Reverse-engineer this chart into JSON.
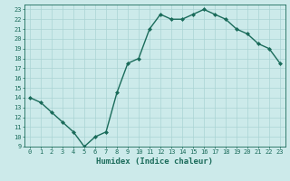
{
  "x": [
    0,
    1,
    2,
    3,
    4,
    5,
    6,
    7,
    8,
    9,
    10,
    11,
    12,
    13,
    14,
    15,
    16,
    17,
    18,
    19,
    20,
    21,
    22,
    23
  ],
  "y": [
    14,
    13.5,
    12.5,
    11.5,
    10.5,
    9,
    10,
    10.5,
    14.5,
    17.5,
    18,
    21,
    22.5,
    22,
    22,
    22.5,
    23,
    22.5,
    22,
    21,
    20.5,
    19.5,
    19,
    17.5
  ],
  "line_color": "#1a6b5a",
  "marker": "D",
  "marker_size": 2.0,
  "bg_color": "#cceaea",
  "grid_color": "#aad4d4",
  "xlabel": "Humidex (Indice chaleur)",
  "ylim": [
    9,
    23.5
  ],
  "xlim": [
    -0.5,
    23.5
  ],
  "yticks": [
    9,
    10,
    11,
    12,
    13,
    14,
    15,
    16,
    17,
    18,
    19,
    20,
    21,
    22,
    23
  ],
  "xticks": [
    0,
    1,
    2,
    3,
    4,
    5,
    6,
    7,
    8,
    9,
    10,
    11,
    12,
    13,
    14,
    15,
    16,
    17,
    18,
    19,
    20,
    21,
    22,
    23
  ],
  "tick_fontsize": 5.0,
  "xlabel_fontsize": 6.5,
  "line_width": 1.0
}
